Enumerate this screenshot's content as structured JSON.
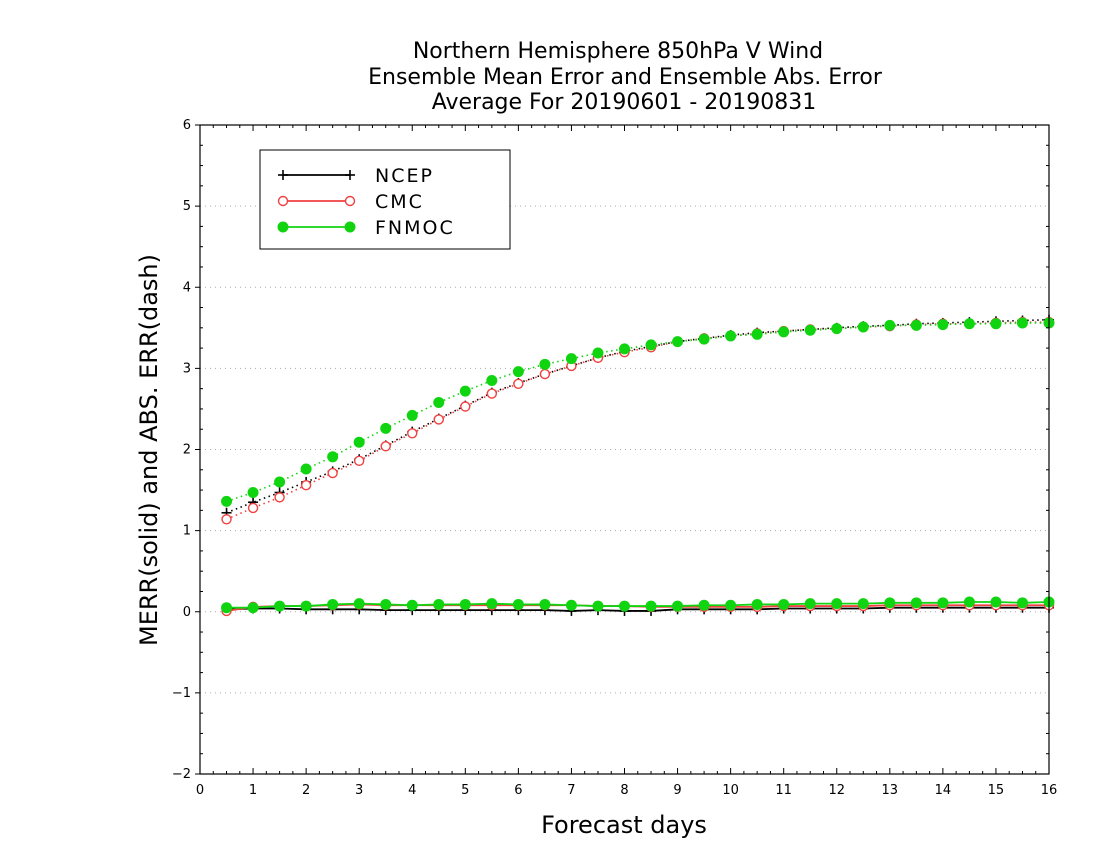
{
  "chart_data": {
    "type": "line",
    "title": [
      "Northern Hemisphere 850hPa V Wind",
      "Ensemble Mean Error and Ensemble Abs. Error",
      "Average For 20190601 - 20190831"
    ],
    "xlabel": "Forecast days",
    "ylabel": "MERR(solid) and ABS. ERR(dash)",
    "xlim": [
      0,
      16
    ],
    "ylim": [
      -2,
      6
    ],
    "xticks": [
      "0",
      "1",
      "2",
      "3",
      "4",
      "5",
      "6",
      "7",
      "8",
      "9",
      "10",
      "11",
      "12",
      "13",
      "14",
      "15",
      "16"
    ],
    "yticks": [
      "-2",
      "-1",
      "0",
      "1",
      "2",
      "3",
      "4",
      "5",
      "6"
    ],
    "grid": "horizontal dotted",
    "legend_position": "top-left",
    "x": [
      0.5,
      1,
      1.5,
      2,
      2.5,
      3,
      3.5,
      4,
      4.5,
      5,
      5.5,
      6,
      6.5,
      7,
      7.5,
      8,
      8.5,
      9,
      9.5,
      10,
      10.5,
      11,
      11.5,
      12,
      12.5,
      13,
      13.5,
      14,
      14.5,
      15,
      15.5,
      16
    ],
    "series": [
      {
        "name": "NCEP",
        "color": "#000000",
        "marker": "plus",
        "merr": [
          0.03,
          0.04,
          0.04,
          0.03,
          0.03,
          0.03,
          0.02,
          0.02,
          0.02,
          0.02,
          0.02,
          0.02,
          0.02,
          0.01,
          0.02,
          0.01,
          0.01,
          0.03,
          0.03,
          0.03,
          0.03,
          0.04,
          0.04,
          0.04,
          0.04,
          0.05,
          0.05,
          0.05,
          0.05,
          0.05,
          0.05,
          0.05
        ],
        "abs_err": [
          1.22,
          1.35,
          1.47,
          1.6,
          1.73,
          1.88,
          2.05,
          2.22,
          2.38,
          2.54,
          2.7,
          2.82,
          2.93,
          3.03,
          3.13,
          3.21,
          3.27,
          3.33,
          3.37,
          3.41,
          3.44,
          3.46,
          3.48,
          3.5,
          3.52,
          3.53,
          3.55,
          3.56,
          3.57,
          3.58,
          3.59,
          3.6
        ]
      },
      {
        "name": "CMC",
        "color": "#f04040",
        "marker": "open-circle",
        "merr": [
          0.01,
          0.06,
          0.07,
          0.07,
          0.08,
          0.09,
          0.08,
          0.08,
          0.08,
          0.08,
          0.08,
          0.08,
          0.08,
          0.08,
          0.07,
          0.07,
          0.06,
          0.06,
          0.06,
          0.06,
          0.06,
          0.07,
          0.07,
          0.07,
          0.07,
          0.08,
          0.08,
          0.08,
          0.08,
          0.08,
          0.08,
          0.08
        ],
        "abs_err": [
          1.14,
          1.28,
          1.41,
          1.56,
          1.71,
          1.86,
          2.04,
          2.2,
          2.37,
          2.53,
          2.69,
          2.81,
          2.93,
          3.03,
          3.13,
          3.2,
          3.26,
          3.33,
          3.37,
          3.4,
          3.43,
          3.46,
          3.48,
          3.49,
          3.51,
          3.52,
          3.54,
          3.55,
          3.55,
          3.56,
          3.57,
          3.57
        ]
      },
      {
        "name": "FNMOC",
        "color": "#11d411",
        "marker": "filled-circle",
        "merr": [
          0.05,
          0.05,
          0.07,
          0.07,
          0.09,
          0.1,
          0.09,
          0.08,
          0.09,
          0.09,
          0.1,
          0.09,
          0.09,
          0.08,
          0.07,
          0.07,
          0.07,
          0.07,
          0.08,
          0.08,
          0.09,
          0.09,
          0.1,
          0.1,
          0.1,
          0.11,
          0.11,
          0.11,
          0.12,
          0.12,
          0.11,
          0.12
        ],
        "abs_err": [
          1.36,
          1.47,
          1.6,
          1.76,
          1.91,
          2.09,
          2.26,
          2.42,
          2.58,
          2.72,
          2.85,
          2.96,
          3.05,
          3.12,
          3.19,
          3.24,
          3.29,
          3.33,
          3.36,
          3.4,
          3.42,
          3.45,
          3.47,
          3.49,
          3.51,
          3.53,
          3.53,
          3.54,
          3.55,
          3.55,
          3.56,
          3.56
        ]
      }
    ]
  }
}
